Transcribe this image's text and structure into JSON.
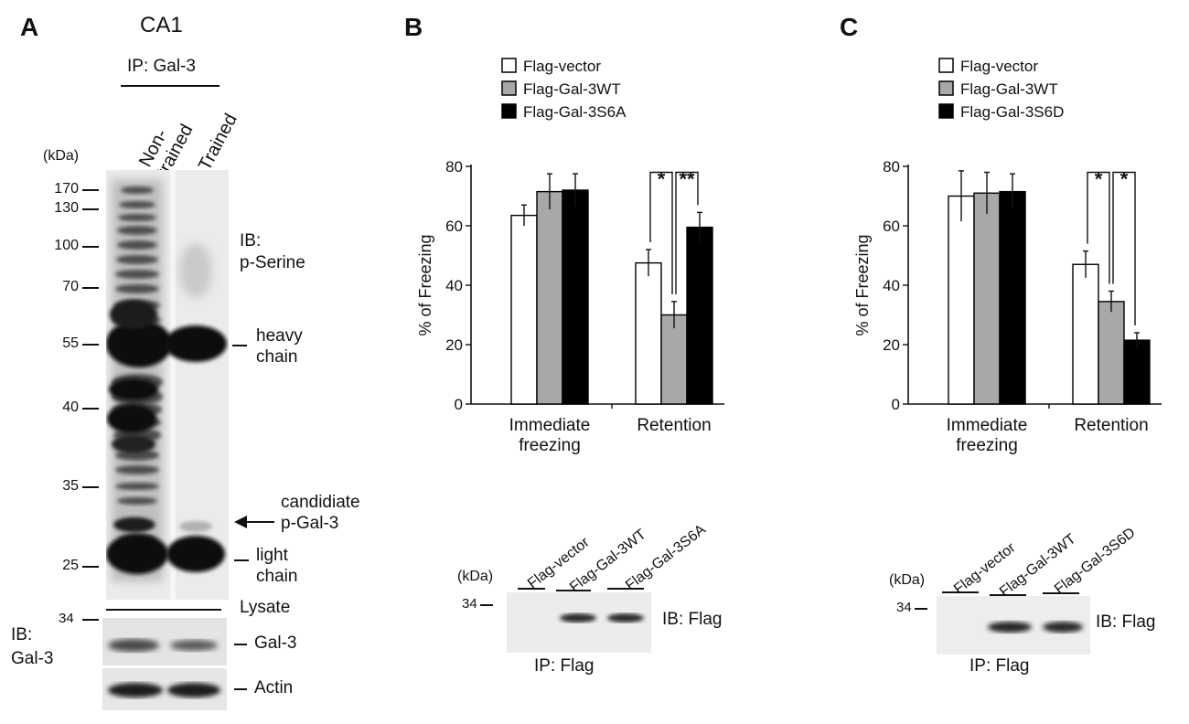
{
  "panel_a": {
    "letter": "A",
    "region": "CA1",
    "ip_label": "IP: Gal-3",
    "lane_labels": [
      "Non-\ntrained",
      "Trained"
    ],
    "kda_label": "(kDa)",
    "markers": [
      {
        "kda": 170,
        "label": "170"
      },
      {
        "kda": 130,
        "label": "130"
      },
      {
        "kda": 100,
        "label": "100"
      },
      {
        "kda": 70,
        "label": "70"
      },
      {
        "kda": 55,
        "label": "55"
      },
      {
        "kda": 40,
        "label": "40"
      },
      {
        "kda": 35,
        "label": "35"
      },
      {
        "kda": 25,
        "label": "25"
      }
    ],
    "ib_pserine": "IB:\np-Serine",
    "heavy_chain": "heavy\nchain",
    "candidate": "candidiate\np-Gal-3",
    "light_chain": "light\nchain",
    "lysate": "Lysate",
    "lysate_marker": "34",
    "ib_gal3": "IB:\nGal-3",
    "gal3": "Gal-3",
    "actin": "Actin"
  },
  "panel_b": {
    "letter": "B",
    "blot": {
      "kda_label": "(kDa)",
      "marker": "34",
      "lanes": [
        "Flag-vector",
        "Flag-Gal-3WT",
        "Flag-Gal-3S6A"
      ],
      "ib": "IB: Flag",
      "ip": "IP: Flag"
    }
  },
  "panel_c": {
    "letter": "C",
    "blot": {
      "kda_label": "(kDa)",
      "marker": "34",
      "lanes": [
        "Flag-vector",
        "Flag-Gal-3WT",
        "Flag-Gal-3S6D"
      ],
      "ib": "IB: Flag",
      "ip": "IP: Flag"
    }
  },
  "chart_data": [
    {
      "type": "bar",
      "title": "",
      "ylabel": "% of Freezing",
      "xlabel": "",
      "ylim": [
        0,
        80
      ],
      "yticks": [
        "0",
        "20",
        "40",
        "60",
        "80"
      ],
      "categories": [
        "Immediate\nfreezing",
        "Retention"
      ],
      "legend_position": "top-left",
      "series": [
        {
          "name": "Flag-vector",
          "color": "#ffffff",
          "values": [
            63.5,
            47.5
          ],
          "errors": [
            3.5,
            4.5
          ]
        },
        {
          "name": "Flag-Gal-3WT",
          "color": "#a8a8a8",
          "values": [
            71.5,
            30
          ],
          "errors": [
            6,
            4.5
          ]
        },
        {
          "name": "Flag-Gal-3S6A",
          "color": "#000000",
          "values": [
            72,
            59.5
          ],
          "errors": [
            5.5,
            5
          ]
        }
      ],
      "significance": [
        {
          "from": 0,
          "to": 1,
          "category": 1,
          "label": "*"
        },
        {
          "from": 1,
          "to": 2,
          "category": 1,
          "label": "**"
        }
      ]
    },
    {
      "type": "bar",
      "title": "",
      "ylabel": "% of Freezing",
      "xlabel": "",
      "ylim": [
        0,
        80
      ],
      "yticks": [
        "0",
        "20",
        "40",
        "60",
        "80"
      ],
      "categories": [
        "Immediate\nfreezing",
        "Retention"
      ],
      "legend_position": "top-left",
      "series": [
        {
          "name": "Flag-vector",
          "color": "#ffffff",
          "values": [
            70,
            47
          ],
          "errors": [
            8.5,
            4.5
          ]
        },
        {
          "name": "Flag-Gal-3WT",
          "color": "#a8a8a8",
          "values": [
            71,
            34.5
          ],
          "errors": [
            7,
            3.5
          ]
        },
        {
          "name": "Flag-Gal-3S6D",
          "color": "#000000",
          "values": [
            71.5,
            21.5
          ],
          "errors": [
            6,
            2.5
          ]
        }
      ],
      "significance": [
        {
          "from": 0,
          "to": 1,
          "category": 1,
          "label": "*"
        },
        {
          "from": 1,
          "to": 2,
          "category": 1,
          "label": "*"
        }
      ]
    }
  ]
}
